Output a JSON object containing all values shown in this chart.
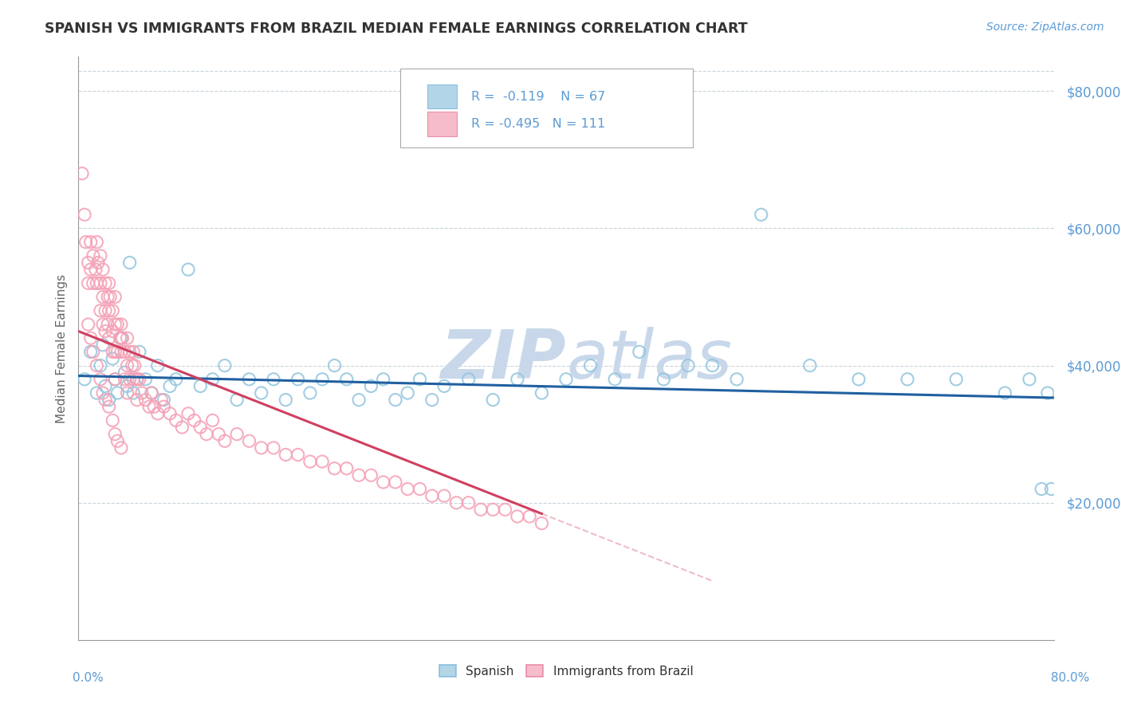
{
  "title": "SPANISH VS IMMIGRANTS FROM BRAZIL MEDIAN FEMALE EARNINGS CORRELATION CHART",
  "source": "Source: ZipAtlas.com",
  "ylabel": "Median Female Earnings",
  "xmin": 0.0,
  "xmax": 0.8,
  "ymin": 0,
  "ymax": 85000,
  "yticks": [
    20000,
    40000,
    60000,
    80000
  ],
  "ytick_labels": [
    "$20,000",
    "$40,000",
    "$60,000",
    "$80,000"
  ],
  "blue_R": -0.119,
  "blue_N": 67,
  "pink_R": -0.495,
  "pink_N": 111,
  "blue_color": "#92c5de",
  "blue_edge": "#6aaed6",
  "pink_color": "#f4a0b5",
  "pink_edge": "#e07090",
  "blue_line_color": "#2060a0",
  "pink_line_color": "#d04060",
  "watermark_color": "#c8d8ea",
  "source_color": "#5b9bd5",
  "legend_color": "#5b9bd5",
  "grid_color": "#c8d4dc",
  "axis_color": "#999999",
  "title_color": "#333333",
  "label_color": "#666666",
  "blue_scatter_x": [
    0.005,
    0.01,
    0.015,
    0.018,
    0.02,
    0.022,
    0.025,
    0.028,
    0.03,
    0.032,
    0.035,
    0.038,
    0.04,
    0.042,
    0.045,
    0.048,
    0.05,
    0.055,
    0.06,
    0.065,
    0.07,
    0.075,
    0.08,
    0.09,
    0.1,
    0.11,
    0.12,
    0.13,
    0.14,
    0.15,
    0.16,
    0.17,
    0.18,
    0.19,
    0.2,
    0.21,
    0.22,
    0.23,
    0.24,
    0.25,
    0.26,
    0.27,
    0.28,
    0.29,
    0.3,
    0.32,
    0.34,
    0.36,
    0.38,
    0.4,
    0.42,
    0.44,
    0.46,
    0.48,
    0.5,
    0.52,
    0.54,
    0.56,
    0.6,
    0.64,
    0.68,
    0.72,
    0.76,
    0.78,
    0.79,
    0.795,
    0.798
  ],
  "blue_scatter_y": [
    38000,
    42000,
    36000,
    40000,
    43000,
    37000,
    35000,
    41000,
    38000,
    36000,
    44000,
    39000,
    37000,
    55000,
    36000,
    38000,
    42000,
    38000,
    36000,
    40000,
    35000,
    37000,
    38000,
    54000,
    37000,
    38000,
    40000,
    35000,
    38000,
    36000,
    38000,
    35000,
    38000,
    36000,
    38000,
    40000,
    38000,
    35000,
    37000,
    38000,
    35000,
    36000,
    38000,
    35000,
    37000,
    38000,
    35000,
    38000,
    36000,
    38000,
    40000,
    38000,
    42000,
    38000,
    40000,
    40000,
    38000,
    62000,
    40000,
    38000,
    38000,
    38000,
    36000,
    38000,
    22000,
    36000,
    22000
  ],
  "pink_scatter_x": [
    0.003,
    0.005,
    0.006,
    0.008,
    0.008,
    0.01,
    0.01,
    0.012,
    0.012,
    0.014,
    0.015,
    0.015,
    0.016,
    0.018,
    0.018,
    0.018,
    0.02,
    0.02,
    0.02,
    0.022,
    0.022,
    0.022,
    0.024,
    0.024,
    0.025,
    0.025,
    0.025,
    0.026,
    0.028,
    0.028,
    0.028,
    0.03,
    0.03,
    0.03,
    0.03,
    0.032,
    0.032,
    0.034,
    0.035,
    0.035,
    0.036,
    0.038,
    0.038,
    0.04,
    0.04,
    0.04,
    0.042,
    0.042,
    0.044,
    0.045,
    0.045,
    0.046,
    0.048,
    0.048,
    0.05,
    0.052,
    0.055,
    0.058,
    0.06,
    0.062,
    0.065,
    0.068,
    0.07,
    0.075,
    0.08,
    0.085,
    0.09,
    0.095,
    0.1,
    0.105,
    0.11,
    0.115,
    0.12,
    0.13,
    0.14,
    0.15,
    0.16,
    0.17,
    0.18,
    0.19,
    0.2,
    0.21,
    0.22,
    0.23,
    0.24,
    0.25,
    0.26,
    0.27,
    0.28,
    0.29,
    0.3,
    0.31,
    0.32,
    0.33,
    0.34,
    0.35,
    0.36,
    0.37,
    0.38,
    0.008,
    0.01,
    0.012,
    0.015,
    0.018,
    0.02,
    0.022,
    0.025,
    0.028,
    0.03,
    0.032,
    0.035
  ],
  "pink_scatter_y": [
    68000,
    62000,
    58000,
    55000,
    52000,
    58000,
    54000,
    56000,
    52000,
    54000,
    58000,
    52000,
    55000,
    56000,
    52000,
    48000,
    54000,
    50000,
    46000,
    52000,
    48000,
    45000,
    50000,
    46000,
    52000,
    48000,
    44000,
    50000,
    48000,
    45000,
    42000,
    50000,
    46000,
    42000,
    38000,
    46000,
    42000,
    44000,
    46000,
    42000,
    44000,
    42000,
    38000,
    44000,
    40000,
    36000,
    42000,
    38000,
    40000,
    42000,
    38000,
    40000,
    38000,
    35000,
    38000,
    36000,
    35000,
    34000,
    36000,
    34000,
    33000,
    35000,
    34000,
    33000,
    32000,
    31000,
    33000,
    32000,
    31000,
    30000,
    32000,
    30000,
    29000,
    30000,
    29000,
    28000,
    28000,
    27000,
    27000,
    26000,
    26000,
    25000,
    25000,
    24000,
    24000,
    23000,
    23000,
    22000,
    22000,
    21000,
    21000,
    20000,
    20000,
    19000,
    19000,
    19000,
    18000,
    18000,
    17000,
    46000,
    44000,
    42000,
    40000,
    38000,
    36000,
    35000,
    34000,
    32000,
    30000,
    29000,
    28000
  ]
}
